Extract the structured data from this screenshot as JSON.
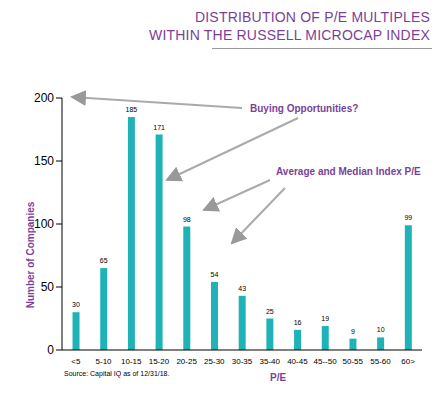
{
  "chart_data": {
    "type": "bar",
    "title": [
      "DISTRIBUTION OF P/E MULTIPLES",
      "WITHIN THE RUSSELL MICROCAP INDEX"
    ],
    "x_label": "P/E",
    "y_label": "Number of Companies",
    "categories": [
      "<5",
      "5-10",
      "10-15",
      "15-20",
      "20-25",
      "25-30",
      "30-35",
      "35-40",
      "40-45",
      "45--50",
      "50-55",
      "55-60",
      "60>"
    ],
    "values": [
      30,
      65,
      185,
      171,
      98,
      54,
      43,
      25,
      16,
      19,
      9,
      10,
      99
    ],
    "color": "#1fb3b8",
    "ylim": [
      0,
      200
    ],
    "yticks": [
      0,
      50,
      100,
      150,
      200
    ],
    "grid": false,
    "data_labels": true,
    "annotations": [
      "Buying Opportunities?",
      "Average and Median Index P/E"
    ],
    "source": "Source: Capital IQ as of 12/31/18."
  }
}
